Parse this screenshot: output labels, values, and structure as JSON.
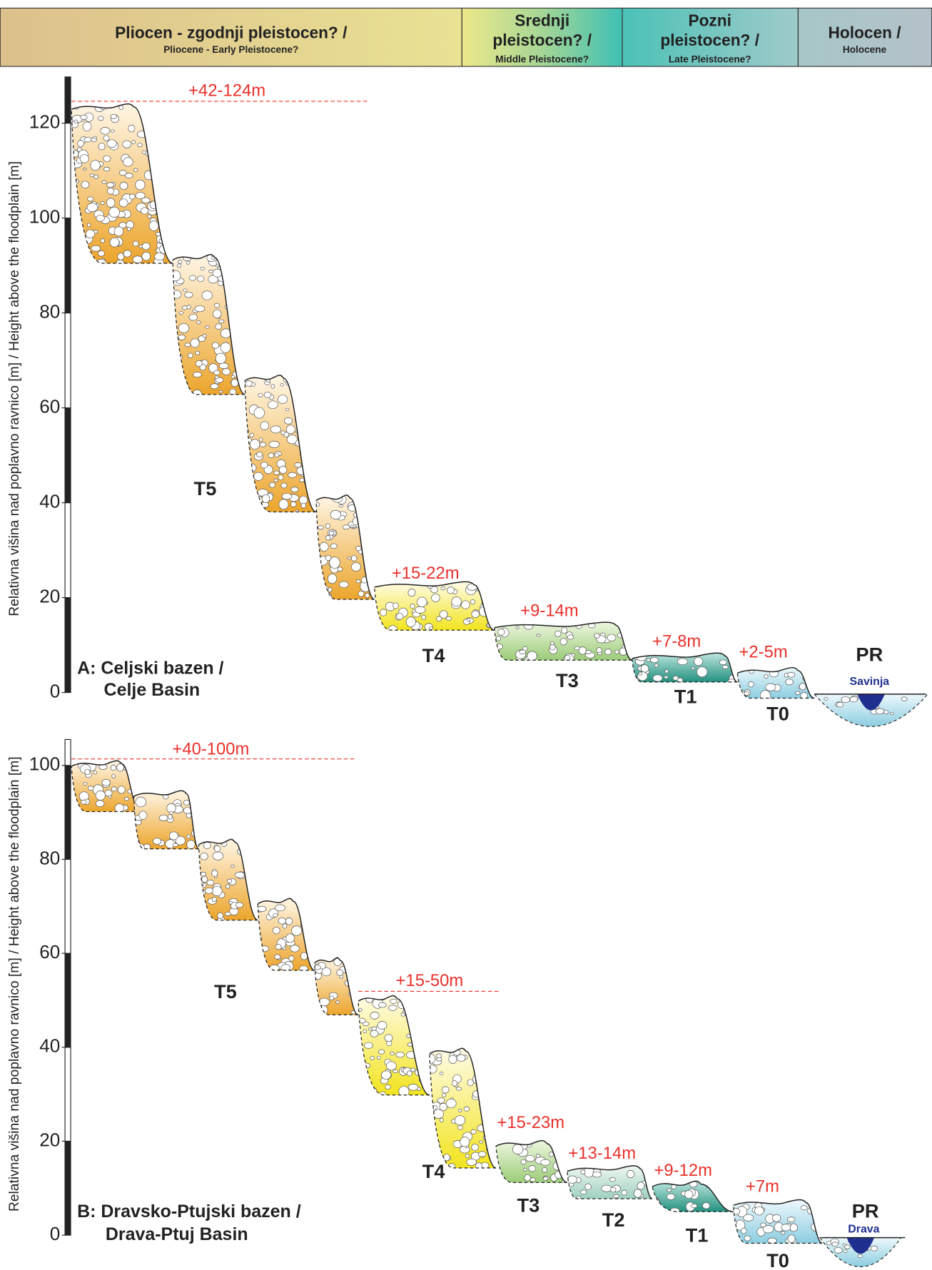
{
  "header": {
    "periods": [
      {
        "title": [
          "Pliocen - zgodnji pleistocen? /"
        ],
        "subtitle": "Pliocene - Early Pleistocene?"
      },
      {
        "title": [
          "Srednji",
          "pleistocen? /"
        ],
        "subtitle": "Middle Pleistocene?"
      },
      {
        "title": [
          "Pozni",
          "pleistocen? /"
        ],
        "subtitle": "Late Pleistocene?"
      },
      {
        "title": [
          "Holocen /"
        ],
        "subtitle": "Holocene"
      }
    ]
  },
  "panels": [
    {
      "axis_title": "Relativna višina nad poplavno ravnico [m]  / Height above the floodplain [m]",
      "yticks": [
        0,
        20,
        40,
        60,
        80,
        100,
        120
      ],
      "label": [
        "A: Celjski bazen /",
        "Celje Basin"
      ],
      "heights": [
        "+42-124m",
        "+15-22m",
        "+9-14m",
        "+7-8m",
        "+2-5m"
      ],
      "terraces": [
        "T5",
        "T4",
        "T3",
        "T1",
        "T0",
        "PR"
      ],
      "river": "Savinja"
    },
    {
      "axis_title": "Relativna višina nad poplavno ravnico [m]  / Height above the floodplain [m]",
      "yticks": [
        0,
        20,
        40,
        60,
        80,
        100
      ],
      "label": [
        "B: Dravsko-Ptujski bazen /",
        "Drava-Ptuj Basin"
      ],
      "heights": [
        "+40-100m",
        "+15-50m",
        "+15-23m",
        "+13-14m",
        "+9-12m",
        "+7m"
      ],
      "terraces": [
        "T5",
        "T4",
        "T3",
        "T2",
        "T1",
        "T0",
        "PR"
      ],
      "river": "Drava"
    }
  ]
}
